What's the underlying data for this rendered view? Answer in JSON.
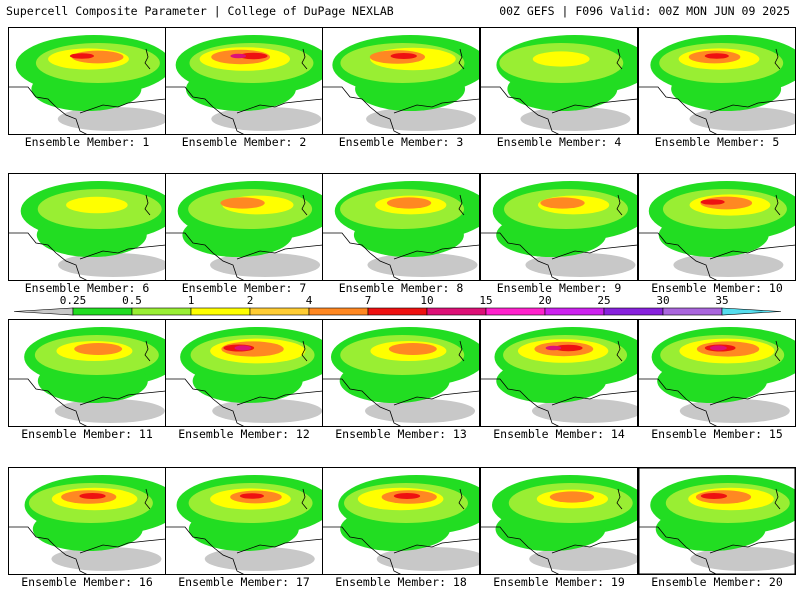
{
  "header": {
    "title": "Supercell Composite Parameter | College of DuPage NEXLAB",
    "run_info": "00Z GEFS | F096 Valid: 00Z MON JUN 09 2025"
  },
  "panels": [
    {
      "label": "Ensemble Member: 1",
      "intensity": 0.55
    },
    {
      "label": "Ensemble Member: 2",
      "intensity": 0.65
    },
    {
      "label": "Ensemble Member: 3",
      "intensity": 0.6
    },
    {
      "label": "Ensemble Member: 4",
      "intensity": 0.3
    },
    {
      "label": "Ensemble Member: 5",
      "intensity": 0.55
    },
    {
      "label": "Ensemble Member: 6",
      "intensity": 0.35
    },
    {
      "label": "Ensemble Member: 7",
      "intensity": 0.45
    },
    {
      "label": "Ensemble Member: 8",
      "intensity": 0.45
    },
    {
      "label": "Ensemble Member: 9",
      "intensity": 0.45
    },
    {
      "label": "Ensemble Member: 10",
      "intensity": 0.55
    },
    {
      "label": "Ensemble Member: 11",
      "intensity": 0.5
    },
    {
      "label": "Ensemble Member: 12",
      "intensity": 0.7
    },
    {
      "label": "Ensemble Member: 13",
      "intensity": 0.5
    },
    {
      "label": "Ensemble Member: 14",
      "intensity": 0.65
    },
    {
      "label": "Ensemble Member: 15",
      "intensity": 0.7
    },
    {
      "label": "Ensemble Member: 16",
      "intensity": 0.6
    },
    {
      "label": "Ensemble Member: 17",
      "intensity": 0.55
    },
    {
      "label": "Ensemble Member: 18",
      "intensity": 0.6
    },
    {
      "label": "Ensemble Member: 19",
      "intensity": 0.45
    },
    {
      "label": "Ensemble Member: 20",
      "intensity": 0.6,
      "selected": true
    }
  ],
  "colorbar": {
    "ticks": [
      "0.25",
      "0.5",
      "1",
      "2",
      "4",
      "7",
      "10",
      "15",
      "20",
      "25",
      "30",
      "35"
    ],
    "colors": [
      "#c8c8c8",
      "#22dd22",
      "#99ee33",
      "#ffff00",
      "#ffcc33",
      "#ff8822",
      "#ee1111",
      "#dd1177",
      "#ff22cc",
      "#cc22ee",
      "#8822dd",
      "#aa66dd",
      "#55ddee"
    ]
  }
}
